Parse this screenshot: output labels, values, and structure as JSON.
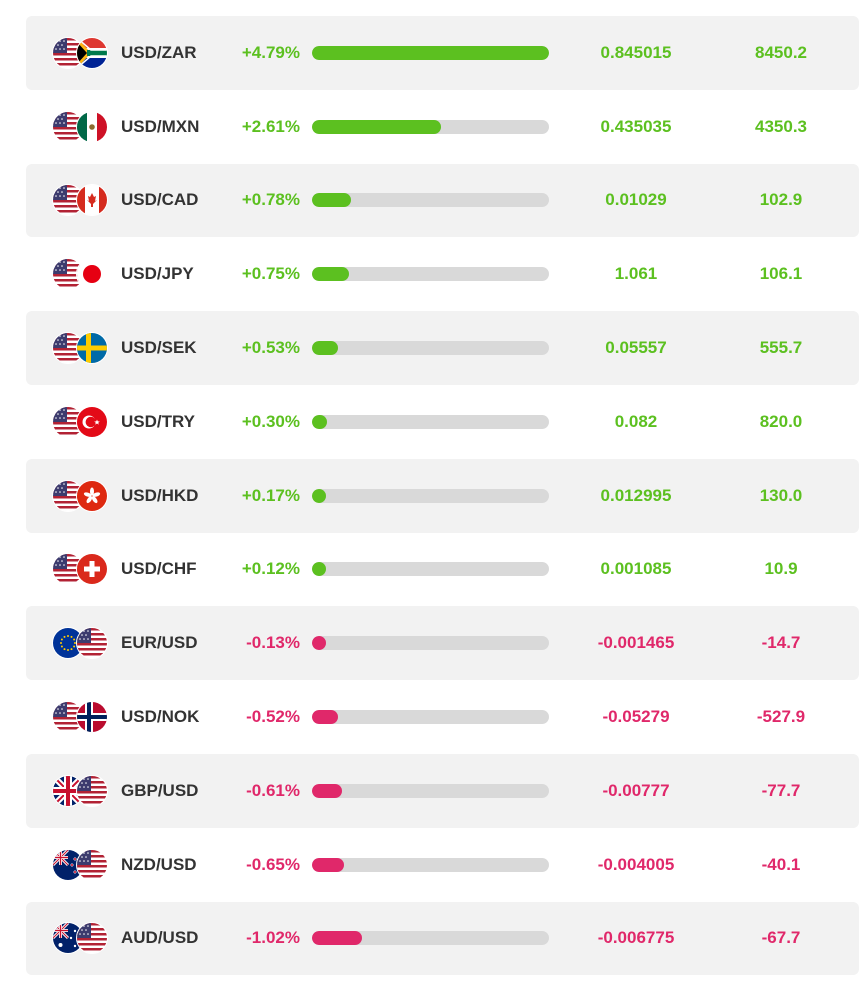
{
  "colors": {
    "positive": "#5cc020",
    "negative": "#e0286a",
    "track": "#d9d9d9",
    "row_alt": "#f2f2f2"
  },
  "rows": [
    {
      "pair": "USD/ZAR",
      "base_flag": "us-flag-icon",
      "quote_flag": "za-flag-icon",
      "change": "+4.79%",
      "value": "0.845015",
      "pips": "8450.2",
      "direction": "positive",
      "bar_level": 1.0
    },
    {
      "pair": "USD/MXN",
      "base_flag": "us-flag-icon",
      "quote_flag": "mx-flag-icon",
      "change": "+2.61%",
      "value": "0.435035",
      "pips": "4350.3",
      "direction": "positive",
      "bar_level": 0.545
    },
    {
      "pair": "USD/CAD",
      "base_flag": "us-flag-icon",
      "quote_flag": "ca-flag-icon",
      "change": "+0.78%",
      "value": "0.01029",
      "pips": "102.9",
      "direction": "positive",
      "bar_level": 0.163
    },
    {
      "pair": "USD/JPY",
      "base_flag": "us-flag-icon",
      "quote_flag": "jp-flag-icon",
      "change": "+0.75%",
      "value": "1.061",
      "pips": "106.1",
      "direction": "positive",
      "bar_level": 0.157
    },
    {
      "pair": "USD/SEK",
      "base_flag": "us-flag-icon",
      "quote_flag": "se-flag-icon",
      "change": "+0.53%",
      "value": "0.05557",
      "pips": "555.7",
      "direction": "positive",
      "bar_level": 0.111
    },
    {
      "pair": "USD/TRY",
      "base_flag": "us-flag-icon",
      "quote_flag": "tr-flag-icon",
      "change": "+0.30%",
      "value": "0.082",
      "pips": "820.0",
      "direction": "positive",
      "bar_level": 0.063
    },
    {
      "pair": "USD/HKD",
      "base_flag": "us-flag-icon",
      "quote_flag": "hk-flag-icon",
      "change": "+0.17%",
      "value": "0.012995",
      "pips": "130.0",
      "direction": "positive",
      "bar_level": 0.059
    },
    {
      "pair": "USD/CHF",
      "base_flag": "us-flag-icon",
      "quote_flag": "ch-flag-icon",
      "change": "+0.12%",
      "value": "0.001085",
      "pips": "10.9",
      "direction": "positive",
      "bar_level": 0.059
    },
    {
      "pair": "EUR/USD",
      "base_flag": "eu-flag-icon",
      "quote_flag": "us-flag-icon",
      "change": "-0.13%",
      "value": "-0.001465",
      "pips": "-14.7",
      "direction": "negative",
      "bar_level": 0.059
    },
    {
      "pair": "USD/NOK",
      "base_flag": "us-flag-icon",
      "quote_flag": "no-flag-icon",
      "change": "-0.52%",
      "value": "-0.05279",
      "pips": "-527.9",
      "direction": "negative",
      "bar_level": 0.109
    },
    {
      "pair": "GBP/USD",
      "base_flag": "gb-flag-icon",
      "quote_flag": "us-flag-icon",
      "change": "-0.61%",
      "value": "-0.00777",
      "pips": "-77.7",
      "direction": "negative",
      "bar_level": 0.127
    },
    {
      "pair": "NZD/USD",
      "base_flag": "nz-flag-icon",
      "quote_flag": "us-flag-icon",
      "change": "-0.65%",
      "value": "-0.004005",
      "pips": "-40.1",
      "direction": "negative",
      "bar_level": 0.136
    },
    {
      "pair": "AUD/USD",
      "base_flag": "au-flag-icon",
      "quote_flag": "us-flag-icon",
      "change": "-1.02%",
      "value": "-0.006775",
      "pips": "-67.7",
      "direction": "negative",
      "bar_level": 0.213
    }
  ]
}
